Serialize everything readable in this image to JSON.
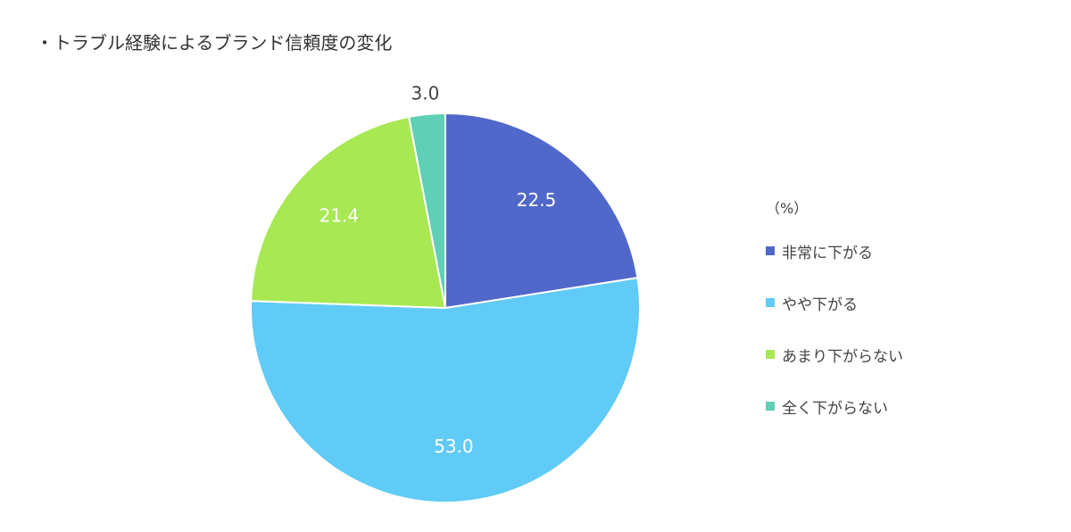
{
  "title": "・トラブル経験によるブランド信頼度の変化",
  "chart_data": {
    "type": "pie",
    "title": "・トラブル経験によるブランド信頼度の変化",
    "unit": "（%）",
    "categories": [
      "非常に下がる",
      "やや下がる",
      "あまり下がらない",
      "全く下がらない"
    ],
    "values": [
      22.5,
      53.0,
      21.4,
      3.0
    ],
    "value_labels": [
      "22.5",
      "53.0",
      "21.4",
      "3.0"
    ],
    "colors": [
      "#5068c9",
      "#60cbf6",
      "#a8e853",
      "#5fcfb6"
    ],
    "start": "top",
    "direction": "clockwise",
    "legend_position": "right"
  }
}
